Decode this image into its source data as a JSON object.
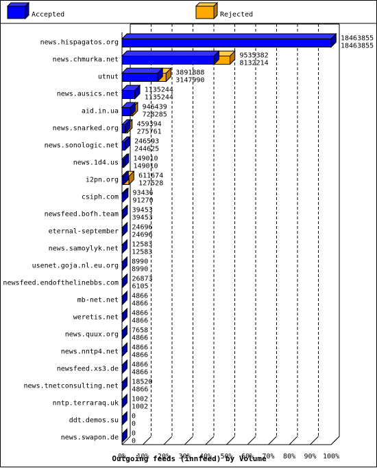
{
  "colors": {
    "accepted_front": "#0000ff",
    "accepted_top": "#3333ff",
    "accepted_side": "#0000aa",
    "rejected_front": "#ffaa00",
    "rejected_top": "#ffcc44",
    "rejected_side": "#bb7700",
    "grid": "#000000"
  },
  "chart_data": {
    "type": "bar",
    "orientation": "horizontal",
    "title": "Outgoing feeds (innfeed) by Volume",
    "legend_position": "top",
    "xlim": [
      0,
      100
    ],
    "x_ticks": [
      "0%",
      "10%",
      "20%",
      "30%",
      "40%",
      "50%",
      "60%",
      "70%",
      "80%",
      "90%",
      "100%"
    ],
    "max_value": 18463855,
    "categories": [
      "news.hispagatos.org",
      "news.chmurka.net",
      "utnut",
      "news.ausics.net",
      "aid.in.ua",
      "news.snarked.org",
      "news.sonologic.net",
      "news.1d4.us",
      "i2pn.org",
      "csiph.com",
      "newsfeed.bofh.team",
      "eternal-september",
      "news.samoylyk.net",
      "usenet.goja.nl.eu.org",
      "newsfeed.endofthelinebbs.com",
      "mb-net.net",
      "weretis.net",
      "news.quux.org",
      "news.nntp4.net",
      "newsfeed.xs3.de",
      "news.tnetconsulting.net",
      "nntp.terraraq.uk",
      "ddt.demos.su",
      "news.swapon.de"
    ],
    "series": [
      {
        "name": "Accepted",
        "values": [
          18463855,
          8132214,
          3147990,
          1135244,
          728285,
          275761,
          244625,
          149010,
          127528,
          91270,
          39453,
          24696,
          12583,
          8990,
          6105,
          4866,
          4866,
          4866,
          4866,
          4866,
          4866,
          1002,
          0,
          0
        ]
      },
      {
        "name": "Rejected",
        "values": [
          18463855,
          9535382,
          3891888,
          1135244,
          946439,
          459394,
          246593,
          149010,
          611674,
          93436,
          39453,
          24696,
          12583,
          8990,
          26873,
          4866,
          4866,
          7658,
          4866,
          4866,
          18520,
          1002,
          0,
          0
        ]
      }
    ],
    "data_labels": [
      [
        "18463855",
        "18463855"
      ],
      [
        "9535382",
        "8132214"
      ],
      [
        "3891888",
        "3147990"
      ],
      [
        "1135244",
        "1135244"
      ],
      [
        "946439",
        "728285"
      ],
      [
        "459394",
        "275761"
      ],
      [
        "246593",
        "244625"
      ],
      [
        "149010",
        "149010"
      ],
      [
        "611674",
        "127528"
      ],
      [
        "93436",
        "91270"
      ],
      [
        "39453",
        "39453"
      ],
      [
        "24696",
        "24696"
      ],
      [
        "12583",
        "12583"
      ],
      [
        "8990",
        "8990"
      ],
      [
        "26873",
        "6105"
      ],
      [
        "4866",
        "4866"
      ],
      [
        "4866",
        "4866"
      ],
      [
        "7658",
        "4866"
      ],
      [
        "4866",
        "4866"
      ],
      [
        "4866",
        "4866"
      ],
      [
        "18520",
        "4866"
      ],
      [
        "1002",
        "1002"
      ],
      [
        "0",
        "0"
      ],
      [
        "0",
        "0"
      ]
    ]
  }
}
